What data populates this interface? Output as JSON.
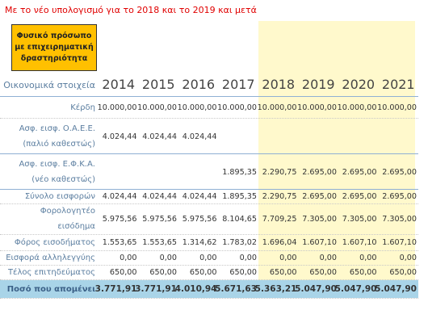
{
  "note_top": "Με το νέο υπολογισμό για το 2018 και το 2019 και μετά",
  "box": {
    "label": "Φυσικό πρόσωπο με επιχειρηματική δραστηριότητα"
  },
  "table": {
    "header_label": "Οικονομικά στοιχεία",
    "years": [
      "2014",
      "2015",
      "2016",
      "2017",
      "2018",
      "2019",
      "2020",
      "2021"
    ],
    "rows": [
      {
        "label": "Κέρδη",
        "values": [
          "10.000,00",
          "10.000,00",
          "10.000,00",
          "10.000,00",
          "10.000,00",
          "10.000,00",
          "10.000,00",
          "10.000,00"
        ]
      },
      {
        "label": "Ασφ. εισφ. Ο.Α.Ε.Ε. (παλιό καθεστώς)",
        "values": [
          "4.024,44",
          "4.024,44",
          "4.024,44",
          null,
          null,
          null,
          null,
          null
        ]
      },
      {
        "label": "Ασφ. εισφ. Ε.Φ.Κ.Α. (νέο καθεστώς)",
        "values": [
          null,
          null,
          null,
          "1.895,35",
          "2.290,75",
          "2.695,00",
          "2.695,00",
          "2.695,00"
        ]
      },
      {
        "label": "Σύνολο εισφορών",
        "values": [
          "4.024,44",
          "4.024,44",
          "4.024,44",
          "1.895,35",
          "2.290,75",
          "2.695,00",
          "2.695,00",
          "2.695,00"
        ]
      },
      {
        "label": "Φορολογητέο εισόδημα",
        "values": [
          "5.975,56",
          "5.975,56",
          "5.975,56",
          "8.104,65",
          "7.709,25",
          "7.305,00",
          "7.305,00",
          "7.305,00"
        ]
      },
      {
        "label": "Φόρος εισοδήματος",
        "values": [
          "1.553,65",
          "1.553,65",
          "1.314,62",
          "1.783,02",
          "1.696,04",
          "1.607,10",
          "1.607,10",
          "1.607,10"
        ]
      },
      {
        "label": "Εισφορά αλληλεγγύης",
        "values": [
          "0,00",
          "0,00",
          "0,00",
          "0,00",
          "0,00",
          "0,00",
          "0,00",
          "0,00"
        ]
      },
      {
        "label": "Τέλος επιτηδεύματος",
        "values": [
          "650,00",
          "650,00",
          "650,00",
          "650,00",
          "650,00",
          "650,00",
          "650,00",
          "650,00"
        ]
      },
      {
        "label": "Ποσό που απομένει",
        "values": [
          "3.771,91",
          "3.771,91",
          "4.010,94",
          "5.671,63",
          "5.363,21",
          "5.047,90",
          "5.047,90",
          "5.047,90"
        ]
      }
    ]
  }
}
